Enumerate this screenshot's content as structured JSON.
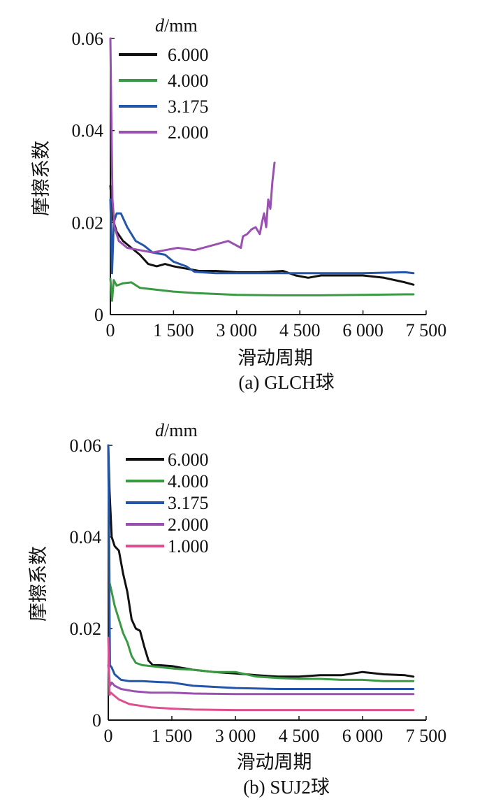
{
  "chart_data": [
    {
      "type": "line",
      "caption": "(a) GLCH球",
      "xlabel": "滑动周期",
      "ylabel": "摩擦系数",
      "xlim": [
        0,
        7500
      ],
      "ylim": [
        0,
        0.06
      ],
      "xticks": [
        0,
        1500,
        3000,
        4500,
        6000,
        7500
      ],
      "xtick_labels": [
        "0",
        "1 500",
        "3 000",
        "4 500",
        "6 000",
        "7 500"
      ],
      "yticks": [
        0,
        0.02,
        0.04,
        0.06
      ],
      "ytick_labels": [
        "0",
        "0.02",
        "0.04",
        "0.06"
      ],
      "legend_title_var": "d",
      "legend_title_unit": "/mm",
      "legend_position": "top-left",
      "series": [
        {
          "name": "6.000",
          "color": "#111111",
          "x": [
            0,
            50,
            150,
            300,
            500,
            700,
            900,
            1100,
            1300,
            1500,
            1800,
            2100,
            2500,
            3000,
            3500,
            3800,
            4100,
            4400,
            4700,
            5000,
            5500,
            6000,
            6500,
            7000,
            7200
          ],
          "y": [
            0.028,
            0.021,
            0.018,
            0.016,
            0.0145,
            0.013,
            0.011,
            0.0105,
            0.011,
            0.0105,
            0.01,
            0.0095,
            0.0095,
            0.0092,
            0.0092,
            0.0093,
            0.0095,
            0.0085,
            0.008,
            0.0085,
            0.0085,
            0.0085,
            0.008,
            0.007,
            0.0065
          ]
        },
        {
          "name": "4.000",
          "color": "#3a9a44",
          "x": [
            0,
            40,
            80,
            150,
            300,
            500,
            700,
            1000,
            1500,
            2000,
            3000,
            4000,
            5000,
            6000,
            7000,
            7200
          ],
          "y": [
            0.0078,
            0.003,
            0.0075,
            0.0063,
            0.0068,
            0.007,
            0.0058,
            0.0055,
            0.005,
            0.0047,
            0.0043,
            0.0042,
            0.0042,
            0.0043,
            0.0044,
            0.0044
          ]
        },
        {
          "name": "3.175",
          "color": "#2355a8",
          "x": [
            0,
            40,
            80,
            150,
            250,
            400,
            600,
            800,
            1000,
            1300,
            1500,
            1800,
            2000,
            2500,
            3000,
            4000,
            5000,
            6000,
            7000,
            7200
          ],
          "y": [
            0.025,
            0.009,
            0.02,
            0.022,
            0.022,
            0.019,
            0.016,
            0.015,
            0.0135,
            0.013,
            0.0115,
            0.0105,
            0.0093,
            0.009,
            0.009,
            0.009,
            0.009,
            0.009,
            0.0092,
            0.009
          ]
        },
        {
          "name": "2.000",
          "color": "#9a50b0",
          "x": [
            0,
            20,
            50,
            100,
            200,
            400,
            700,
            1000,
            1300,
            1600,
            2000,
            2400,
            2800,
            3100,
            3150,
            3250,
            3350,
            3450,
            3550,
            3600,
            3650,
            3700,
            3750,
            3800,
            3850,
            3900
          ],
          "y": [
            0.06,
            0.045,
            0.025,
            0.019,
            0.016,
            0.0145,
            0.014,
            0.0135,
            0.014,
            0.0145,
            0.014,
            0.015,
            0.016,
            0.0145,
            0.017,
            0.0175,
            0.0185,
            0.019,
            0.0175,
            0.02,
            0.022,
            0.019,
            0.025,
            0.023,
            0.029,
            0.033
          ]
        }
      ]
    },
    {
      "type": "line",
      "caption": "(b) SUJ2球",
      "xlabel": "滑动周期",
      "ylabel": "摩擦系数",
      "xlim": [
        0,
        7500
      ],
      "ylim": [
        0,
        0.06
      ],
      "xticks": [
        0,
        1500,
        3000,
        4500,
        6000,
        7500
      ],
      "xtick_labels": [
        "0",
        "1 500",
        "3 000",
        "4 500",
        "6 000",
        "7 500"
      ],
      "yticks": [
        0,
        0.02,
        0.04,
        0.06
      ],
      "ytick_labels": [
        "0",
        "0.02",
        "0.04",
        "0.06"
      ],
      "legend_title_var": "d",
      "legend_title_unit": "/mm",
      "legend_position": "top-left",
      "series": [
        {
          "name": "6.000",
          "color": "#111111",
          "x": [
            0,
            30,
            80,
            150,
            250,
            350,
            450,
            550,
            650,
            750,
            850,
            950,
            1050,
            1200,
            1500,
            2000,
            2500,
            3000,
            3500,
            4000,
            4500,
            5000,
            5500,
            6000,
            6500,
            7000,
            7200
          ],
          "y": [
            0.06,
            0.05,
            0.04,
            0.038,
            0.037,
            0.032,
            0.028,
            0.022,
            0.02,
            0.0195,
            0.016,
            0.013,
            0.012,
            0.012,
            0.0118,
            0.011,
            0.0105,
            0.0102,
            0.0098,
            0.0095,
            0.0095,
            0.0098,
            0.0098,
            0.0105,
            0.01,
            0.0098,
            0.0095
          ]
        },
        {
          "name": "4.000",
          "color": "#3a9a44",
          "x": [
            0,
            30,
            80,
            150,
            250,
            350,
            450,
            550,
            650,
            800,
            1000,
            1300,
            1600,
            2000,
            2500,
            3000,
            3500,
            4000,
            4500,
            5000,
            5500,
            6000,
            6500,
            7000,
            7200
          ],
          "y": [
            0.06,
            0.03,
            0.028,
            0.025,
            0.022,
            0.019,
            0.017,
            0.014,
            0.0125,
            0.012,
            0.0118,
            0.0115,
            0.0112,
            0.011,
            0.0105,
            0.0105,
            0.0095,
            0.0092,
            0.009,
            0.009,
            0.0088,
            0.0088,
            0.0085,
            0.0085,
            0.0085
          ]
        },
        {
          "name": "3.175",
          "color": "#2355a8",
          "x": [
            0,
            40,
            80,
            150,
            300,
            500,
            800,
            1200,
            1500,
            2000,
            3000,
            4000,
            5000,
            6000,
            7000,
            7200
          ],
          "y": [
            0.06,
            0.012,
            0.0115,
            0.01,
            0.0088,
            0.0085,
            0.0085,
            0.0083,
            0.0082,
            0.0075,
            0.007,
            0.0068,
            0.0068,
            0.0068,
            0.0068,
            0.0068
          ]
        },
        {
          "name": "2.000",
          "color": "#9a50b0",
          "x": [
            0,
            40,
            80,
            150,
            300,
            600,
            1000,
            1500,
            2000,
            3000,
            4000,
            5000,
            6000,
            7000,
            7200
          ],
          "y": [
            0.012,
            0.0075,
            0.0082,
            0.0075,
            0.0068,
            0.0063,
            0.006,
            0.006,
            0.0058,
            0.0057,
            0.0057,
            0.0057,
            0.0057,
            0.0057,
            0.0057
          ]
        },
        {
          "name": "1.000",
          "color": "#dd4f8f",
          "x": [
            0,
            30,
            60,
            120,
            250,
            500,
            1000,
            1500,
            2000,
            3000,
            4000,
            5000,
            6000,
            7000,
            7200
          ],
          "y": [
            0.018,
            0.0055,
            0.006,
            0.0055,
            0.0045,
            0.0035,
            0.0028,
            0.0025,
            0.0023,
            0.0022,
            0.0022,
            0.0022,
            0.0022,
            0.0022,
            0.0022
          ]
        }
      ]
    }
  ]
}
